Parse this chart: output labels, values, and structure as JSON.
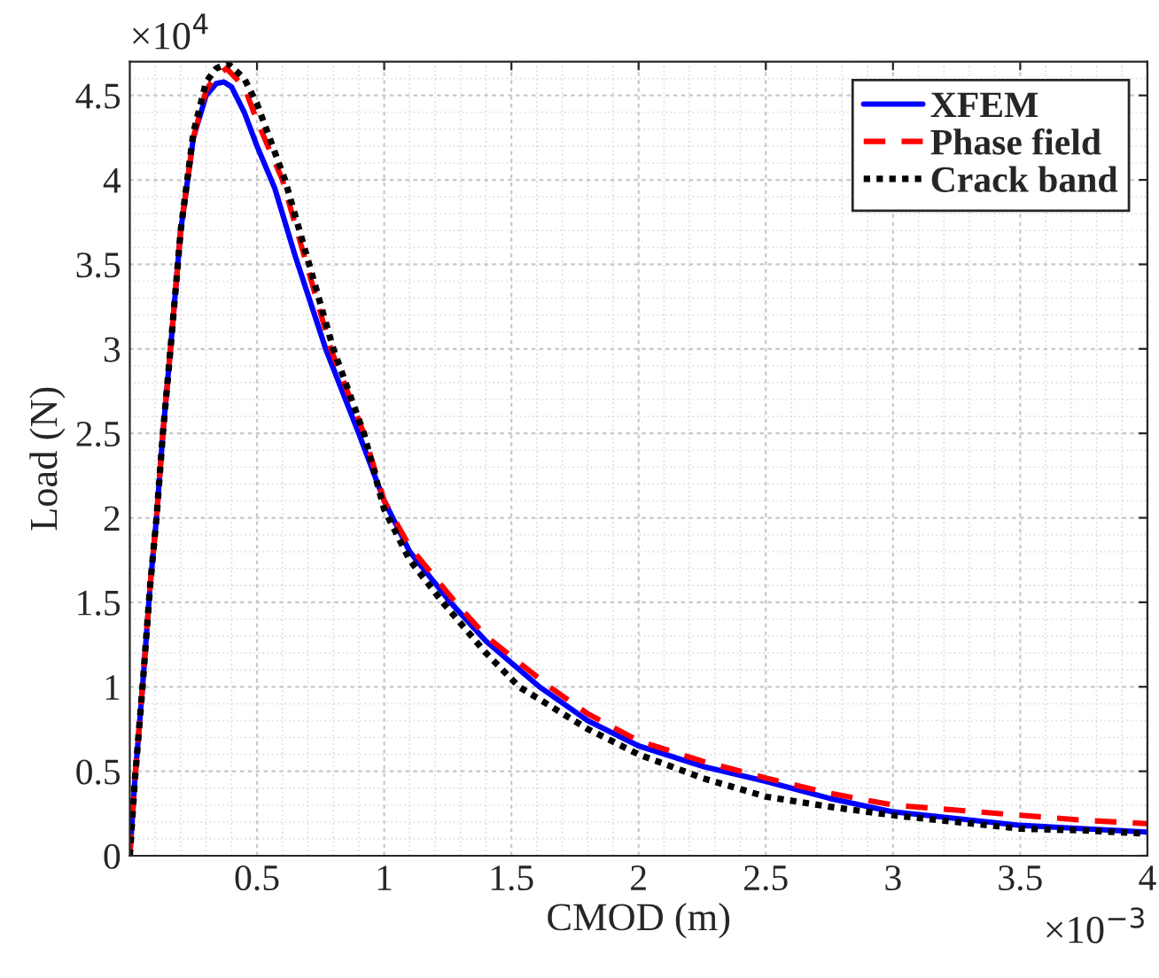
{
  "chart_data": {
    "type": "line",
    "xlabel": "CMOD (m)",
    "ylabel": "Load (N)",
    "xlim": [
      0,
      4
    ],
    "ylim": [
      0,
      4.7
    ],
    "xticks": [
      0.5,
      1,
      1.5,
      2,
      2.5,
      3,
      3.5,
      4
    ],
    "yticks": [
      0,
      0.5,
      1,
      1.5,
      2,
      2.5,
      3,
      3.5,
      4,
      4.5
    ],
    "annotations": [
      "×10$^{4}$",
      "×10$^{−3}$"
    ],
    "grid": true,
    "legend": "top right",
    "series": [
      {
        "name": "XFEM",
        "color": "#0000ff",
        "line_style": "solid",
        "x": [
          0,
          0.02,
          0.05,
          0.08,
          0.105,
          0.13,
          0.16,
          0.2,
          0.25,
          0.3,
          0.34,
          0.37,
          0.4,
          0.45,
          0.5,
          0.57,
          0.65,
          0.77,
          0.9,
          1.0,
          1.1,
          1.26,
          1.4,
          1.61,
          1.8,
          2.0,
          2.25,
          2.5,
          2.75,
          3.0,
          3.25,
          3.5,
          3.75,
          4.0
        ],
        "values": [
          0,
          0.45,
          1.0,
          1.6,
          2.0,
          2.5,
          3.0,
          3.7,
          4.25,
          4.5,
          4.57,
          4.58,
          4.55,
          4.4,
          4.2,
          3.95,
          3.55,
          3.0,
          2.5,
          2.1,
          1.8,
          1.5,
          1.27,
          1.0,
          0.8,
          0.65,
          0.53,
          0.44,
          0.34,
          0.26,
          0.22,
          0.18,
          0.16,
          0.14
        ]
      },
      {
        "name": "Phase field",
        "color": "#ff0000",
        "line_style": "dashed",
        "x": [
          0,
          0.02,
          0.05,
          0.08,
          0.105,
          0.13,
          0.16,
          0.2,
          0.25,
          0.3,
          0.33,
          0.38,
          0.45,
          0.5,
          0.6,
          0.79,
          0.92,
          1.0,
          1.1,
          1.28,
          1.4,
          1.65,
          1.8,
          2.0,
          2.25,
          2.5,
          2.75,
          3.0,
          3.25,
          3.5,
          3.75,
          4.0
        ],
        "values": [
          0,
          0.45,
          1.0,
          1.6,
          2.0,
          2.5,
          3.0,
          3.7,
          4.25,
          4.53,
          4.6,
          4.66,
          4.55,
          4.35,
          4.0,
          3.0,
          2.5,
          2.1,
          1.83,
          1.5,
          1.3,
          1.0,
          0.84,
          0.68,
          0.56,
          0.46,
          0.37,
          0.3,
          0.27,
          0.24,
          0.21,
          0.19
        ]
      },
      {
        "name": "Crack band",
        "color": "#000000",
        "line_style": "dotted",
        "x": [
          0,
          0.02,
          0.05,
          0.08,
          0.105,
          0.13,
          0.16,
          0.2,
          0.25,
          0.3,
          0.34,
          0.385,
          0.45,
          0.5,
          0.61,
          0.8,
          0.92,
          1.0,
          1.1,
          1.23,
          1.4,
          1.53,
          1.8,
          2.0,
          2.25,
          2.5,
          2.75,
          3.0,
          3.25,
          3.5,
          3.75,
          4.0
        ],
        "values": [
          0,
          0.45,
          1.0,
          1.6,
          2.0,
          2.5,
          3.0,
          3.7,
          4.28,
          4.58,
          4.66,
          4.69,
          4.6,
          4.45,
          4.0,
          3.0,
          2.5,
          2.05,
          1.75,
          1.5,
          1.2,
          1.0,
          0.75,
          0.6,
          0.46,
          0.35,
          0.29,
          0.24,
          0.2,
          0.16,
          0.15,
          0.13
        ]
      }
    ]
  }
}
